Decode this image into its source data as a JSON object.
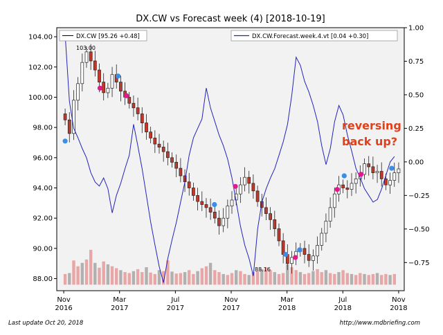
{
  "chart_data": {
    "type": "candlestick",
    "title": "DX.CW vs Forecast week (4)  [2018-10-19]",
    "left_axis": {
      "ylim": [
        87.2,
        104.6
      ],
      "ticks": [
        88.0,
        90.0,
        92.0,
        94.0,
        96.0,
        98.0,
        100.0,
        102.0,
        104.0
      ],
      "tick_labels": [
        "88.00",
        "90.00",
        "92.00",
        "94.00",
        "96.00",
        "98.00",
        "100.00",
        "102.00",
        "104.00"
      ]
    },
    "right_axis": {
      "ylim": [
        -0.96,
        1.0
      ],
      "ticks": [
        1.0,
        0.75,
        0.5,
        0.25,
        0.0,
        -0.25,
        -0.5,
        -0.75
      ],
      "tick_labels": [
        "1.00",
        "0.75",
        "0.50",
        "0.25",
        "0.00",
        "−0.25",
        "−0.50",
        "−0.75"
      ]
    },
    "x_axis": {
      "range": [
        -0.5,
        24.4
      ],
      "ticks": [
        0,
        4,
        8,
        12,
        16,
        20,
        24
      ],
      "tick_labels": [
        [
          "Nov",
          "2016"
        ],
        [
          "Mar",
          "2017"
        ],
        [
          "Jul",
          "2017"
        ],
        [
          "Nov",
          "2017"
        ],
        [
          "Mar",
          "2018"
        ],
        [
          "Jul",
          "2018"
        ],
        [
          "Nov",
          "2018"
        ]
      ]
    },
    "legend": {
      "price": "DX.CW [95.26 +0.48]",
      "forecast": "DX.CW.Forecast.week.4.vt [0.04 +0.30]"
    },
    "annotations": {
      "high_label": "103.00",
      "low_label": "88.16",
      "callout_line1": "reversing",
      "callout_line2": "back up?"
    },
    "price_close": [
      98.5,
      97.6,
      99.8,
      100.9,
      102.3,
      103.0,
      102.4,
      101.8,
      101.0,
      100.3,
      100.6,
      101.5,
      101.0,
      100.4,
      100.0,
      99.6,
      99.3,
      98.9,
      98.3,
      97.7,
      97.3,
      96.9,
      96.7,
      96.4,
      96.0,
      95.7,
      95.3,
      94.8,
      94.4,
      94.0,
      93.5,
      93.1,
      92.9,
      92.7,
      92.4,
      92.0,
      91.5,
      92.0,
      92.8,
      93.2,
      93.6,
      94.2,
      94.7,
      94.3,
      93.8,
      93.1,
      92.7,
      92.3,
      91.9,
      91.3,
      90.5,
      89.6,
      89.0,
      89.4,
      89.8,
      90.0,
      89.6,
      89.2,
      89.5,
      90.2,
      91.0,
      91.8,
      92.7,
      93.6,
      94.2,
      94.0,
      93.9,
      94.3,
      94.6,
      94.9,
      95.6,
      95.4,
      95.0,
      95.1,
      94.6,
      94.2,
      94.5,
      95.0,
      95.26
    ],
    "forecast": [
      0.95,
      0.45,
      0.25,
      0.18,
      0.1,
      0.03,
      -0.08,
      -0.15,
      -0.18,
      -0.12,
      -0.2,
      -0.38,
      -0.25,
      -0.16,
      -0.05,
      0.05,
      0.28,
      0.12,
      -0.05,
      -0.25,
      -0.45,
      -0.62,
      -0.78,
      -0.9,
      -0.72,
      -0.58,
      -0.45,
      -0.3,
      -0.15,
      0.05,
      0.18,
      0.25,
      0.32,
      0.55,
      0.4,
      0.3,
      0.2,
      0.12,
      0.02,
      -0.12,
      -0.3,
      -0.48,
      -0.62,
      -0.72,
      -0.85,
      -0.5,
      -0.3,
      -0.2,
      -0.12,
      -0.05,
      0.05,
      0.15,
      0.28,
      0.5,
      0.78,
      0.72,
      0.6,
      0.52,
      0.42,
      0.3,
      0.12,
      -0.02,
      0.1,
      0.3,
      0.42,
      0.35,
      0.2,
      0.08,
      -0.05,
      -0.12,
      -0.2,
      -0.25,
      -0.3,
      -0.28,
      -0.2,
      -0.1,
      0.0,
      0.04
    ],
    "volume": [
      0.22,
      0.24,
      0.5,
      0.38,
      0.45,
      0.52,
      0.72,
      0.45,
      0.35,
      0.48,
      0.42,
      0.38,
      0.34,
      0.3,
      0.26,
      0.24,
      0.28,
      0.32,
      0.26,
      0.36,
      0.25,
      0.22,
      0.3,
      0.28,
      0.5,
      0.27,
      0.23,
      0.24,
      0.26,
      0.3,
      0.22,
      0.28,
      0.34,
      0.38,
      0.45,
      0.3,
      0.26,
      0.22,
      0.2,
      0.24,
      0.3,
      0.28,
      0.22,
      0.2,
      0.26,
      0.28,
      0.32,
      0.36,
      0.3,
      0.26,
      0.22,
      0.24,
      0.42,
      0.36,
      0.3,
      0.26,
      0.22,
      0.24,
      0.28,
      0.32,
      0.26,
      0.3,
      0.24,
      0.22,
      0.26,
      0.3,
      0.24,
      0.22,
      0.2,
      0.24,
      0.22,
      0.2,
      0.22,
      0.24,
      0.2,
      0.22,
      0.2,
      0.22
    ],
    "markers_blue": [
      [
        0.1,
        97.1
      ],
      [
        3.9,
        101.4
      ],
      [
        10.8,
        92.9
      ],
      [
        15.9,
        89.6
      ],
      [
        16.9,
        89.9
      ],
      [
        20.1,
        94.8
      ],
      [
        23.5,
        95.3
      ]
    ],
    "markers_pink": [
      [
        2.6,
        100.6
      ],
      [
        4.5,
        100.1
      ],
      [
        12.3,
        94.1
      ],
      [
        16.6,
        89.4
      ],
      [
        19.6,
        93.9
      ],
      [
        21.3,
        94.9
      ]
    ],
    "colors": {
      "candle_down": "#c0392b",
      "candle_up_outline": "#222222",
      "forecast_line": "#2222bb",
      "volume_pink": "#e8a6a6",
      "volume_gray": "#b0b0b0",
      "marker_blue": "#3a8ee6",
      "marker_pink": "#e01a8c",
      "callout_text": "#e0401a"
    }
  },
  "footer": {
    "last_update": "Last update Oct 20, 2018",
    "url": "http://www.mdbriefing.com"
  }
}
